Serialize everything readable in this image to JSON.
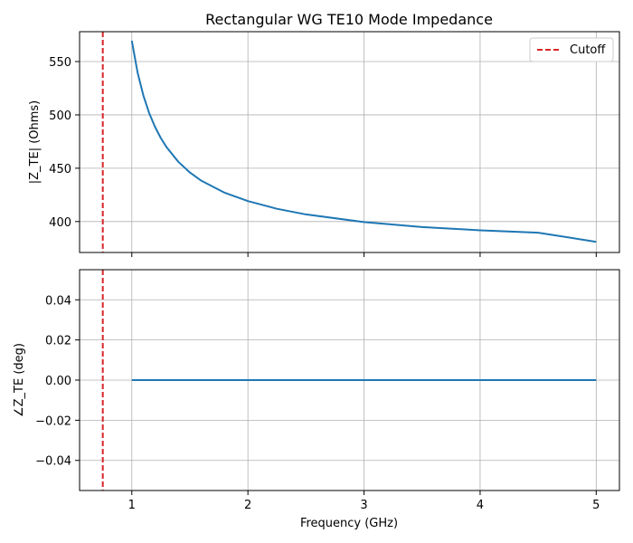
{
  "chart_data": [
    {
      "type": "line",
      "title": "Rectangular WG TE10 Mode Impedance",
      "xlabel": "",
      "ylabel": "|Z_TE| (Ohms)",
      "xlim": [
        0.55,
        5.2
      ],
      "ylim": [
        371,
        578
      ],
      "grid": true,
      "legend": {
        "location": "top-right",
        "entries": [
          "Cutoff"
        ]
      },
      "x_ticks": [
        1,
        2,
        3,
        4,
        5
      ],
      "x_tick_labels_shown": false,
      "y_ticks": [
        400,
        450,
        500,
        550
      ],
      "y_tick_labels": [
        "400",
        "450",
        "500",
        "550"
      ],
      "series": [
        {
          "color": "#1f77b4",
          "style": "solid",
          "x": [
            1.0,
            1.05,
            1.1,
            1.15,
            1.2,
            1.25,
            1.3,
            1.4,
            1.5,
            1.6,
            1.8,
            2.0,
            2.25,
            2.5,
            3.0,
            3.5,
            4.0,
            4.5,
            5.0
          ],
          "y": [
            569.5,
            539.5,
            518.0,
            501.5,
            488.7,
            478.2,
            469.6,
            456.1,
            446.0,
            438.2,
            427.0,
            419.2,
            412.0,
            406.7,
            399.5,
            394.9,
            391.8,
            389.6,
            381.0
          ]
        },
        {
          "name": "Cutoff",
          "color": "#d62728",
          "style": "dashed",
          "vertical_line_x": 0.75
        }
      ]
    },
    {
      "type": "line",
      "title": "",
      "xlabel": "Frequency (GHz)",
      "ylabel": "∠Z_TE (deg)",
      "xlim": [
        0.55,
        5.2
      ],
      "ylim": [
        -0.055,
        0.055
      ],
      "grid": true,
      "x_ticks": [
        1,
        2,
        3,
        4,
        5
      ],
      "x_tick_labels": [
        "1",
        "2",
        "3",
        "4",
        "5"
      ],
      "y_ticks": [
        -0.04,
        -0.02,
        0.0,
        0.02,
        0.04
      ],
      "y_tick_labels": [
        "−0.04",
        "−0.02",
        "0.00",
        "0.02",
        "0.04"
      ],
      "series": [
        {
          "color": "#1f77b4",
          "style": "solid",
          "x": [
            1.0,
            2.0,
            3.0,
            4.0,
            5.0
          ],
          "y": [
            0.0,
            0.0,
            0.0,
            0.0,
            0.0
          ]
        },
        {
          "color": "#d62728",
          "style": "dashed",
          "vertical_line_x": 0.75
        }
      ]
    }
  ]
}
